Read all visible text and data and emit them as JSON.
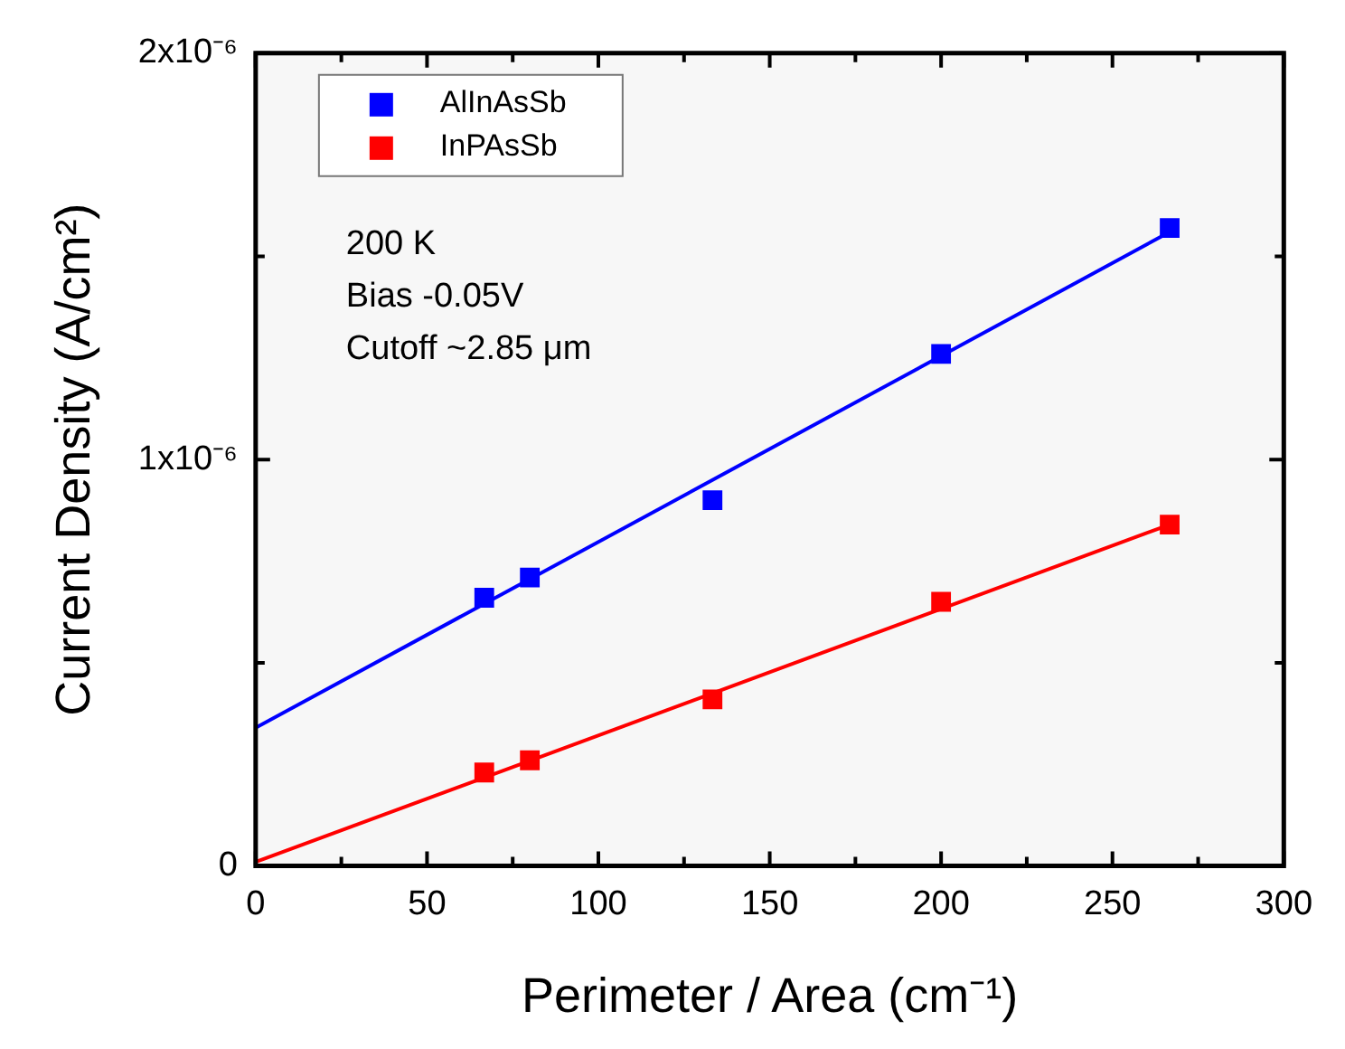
{
  "chart_data": {
    "type": "scatter",
    "xlabel": "Perimeter / Area (cm⁻¹)",
    "ylabel": "Current Density (A/cm²)",
    "series": [
      {
        "name": "AlInAsSb",
        "color": "#0000ff",
        "x": [
          66.7,
          80,
          133.3,
          200,
          266.7
        ],
        "values": [
          6.6e-07,
          7.1e-07,
          9e-07,
          1.26e-06,
          1.57e-06
        ]
      },
      {
        "name": "InPAsSb",
        "color": "#ff0000",
        "x": [
          66.7,
          80,
          133.3,
          200,
          266.7
        ],
        "values": [
          2.3e-07,
          2.6e-07,
          4.1e-07,
          6.5e-07,
          8.4e-07
        ]
      },
      {
        "color": "#0000ff",
        "type": "line",
        "marker": "none",
        "x": [
          0,
          266.7
        ],
        "values": [
          3.4e-07,
          1.56e-06
        ]
      },
      {
        "color": "#ff0000",
        "type": "line",
        "marker": "none",
        "x": [
          0,
          266.7
        ],
        "values": [
          1e-08,
          8.4e-07
        ]
      }
    ],
    "xlim": [
      0,
      300
    ],
    "ylim": [
      0,
      2e-06
    ],
    "xticks": [
      0,
      {
        "value": 25,
        "label": null
      },
      50,
      {
        "value": 75,
        "label": null
      },
      100,
      {
        "value": 125,
        "label": null
      },
      150,
      {
        "value": 175,
        "label": null
      },
      200,
      {
        "value": 225,
        "label": null
      },
      250,
      {
        "value": 275,
        "label": null
      },
      300
    ],
    "yticks": [
      {
        "value": 0,
        "label": "0"
      },
      {
        "value": 5e-07,
        "label": null
      },
      {
        "value": 1e-06,
        "label": "1x10⁻⁶"
      },
      {
        "value": 1.5e-06,
        "label": null
      },
      {
        "value": 2e-06,
        "label": "2x10⁻⁶"
      }
    ],
    "annotations": [
      "200 K",
      "Bias -0.05V",
      "Cutoff ~2.85 μm"
    ],
    "legend": "top left",
    "marker": "square",
    "line_style": "solid",
    "grid": false
  }
}
